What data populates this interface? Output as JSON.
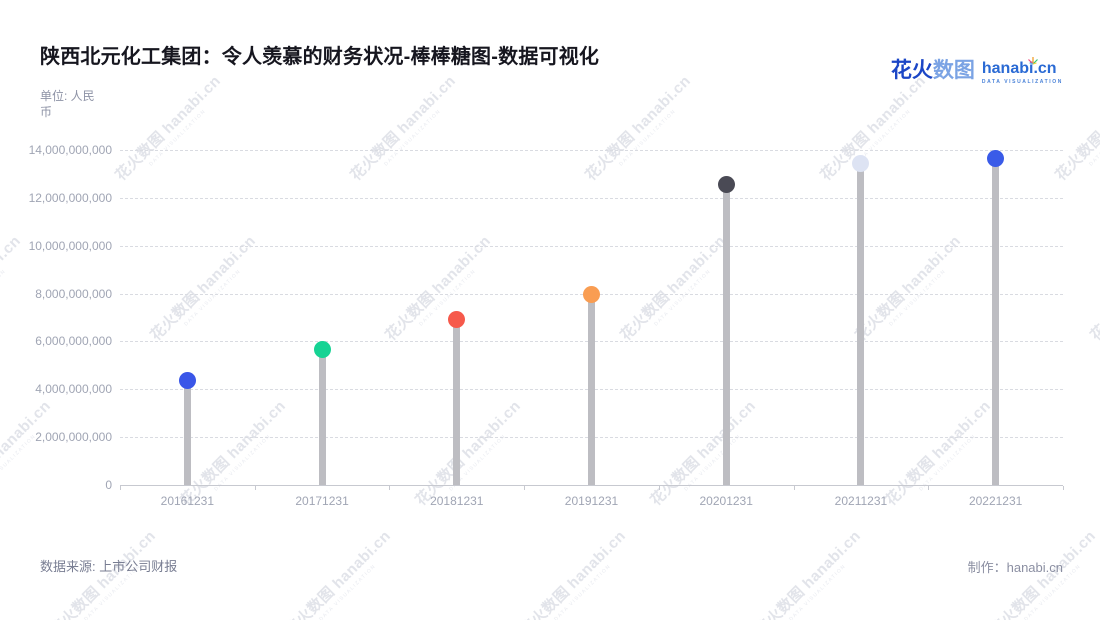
{
  "header": {
    "title": "陕西北元化工集团：令人羡慕的财务状况-棒棒糖图-数据可视化",
    "logo": {
      "brand_cn_primary": "花火",
      "brand_cn_secondary": "数图",
      "brand_en": "hanabi.cn",
      "brand_sub": "DATA VISUALIZATION"
    }
  },
  "unit_label": "单位: 人民币",
  "watermark": {
    "text": "花火数图 hanabi.cn",
    "subtext": "DATA VISUALIZATION"
  },
  "footer": {
    "source": "数据来源: 上市公司财报",
    "credit": "制作：hanabi.cn"
  },
  "chart_data": {
    "type": "lollipop",
    "title": "陕西北元化工集团：令人羡慕的财务状况-棒棒糖图-数据可视化",
    "xlabel": "",
    "ylabel": "单位: 人民币",
    "categories": [
      "20161231",
      "20171231",
      "20181231",
      "20191231",
      "20201231",
      "20211231",
      "20221231"
    ],
    "values": [
      4350000000,
      5650000000,
      6900000000,
      7950000000,
      12550000000,
      13450000000,
      13650000000
    ],
    "point_colors": [
      "#3a56e8",
      "#16d394",
      "#f6594b",
      "#f99d52",
      "#4a4a55",
      "#dde3f3",
      "#3a5be8"
    ],
    "stem_color": "#bdbdc2",
    "ylim": [
      0,
      14000000000
    ],
    "y_tick_step": 2000000000,
    "grid": true,
    "legend_position": "none"
  }
}
